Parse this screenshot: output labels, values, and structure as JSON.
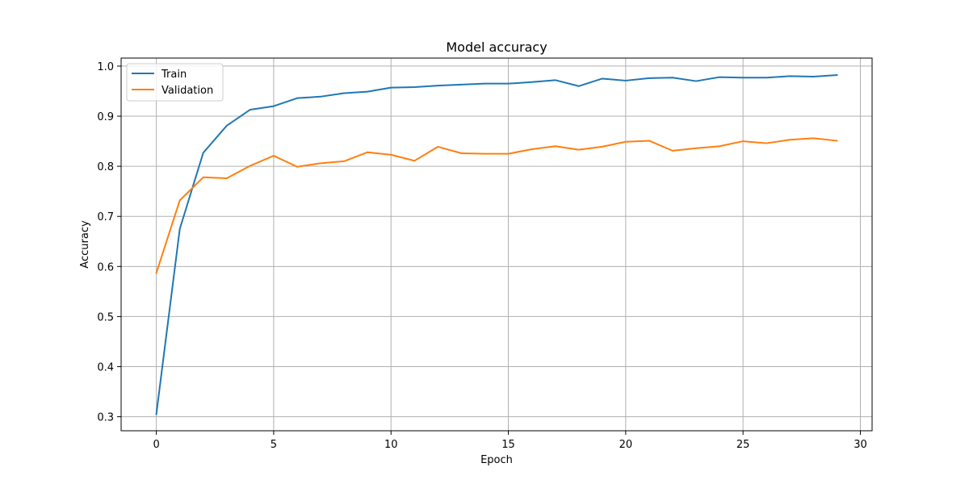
{
  "chart_data": {
    "type": "line",
    "title": "Model accuracy",
    "xlabel": "Epoch",
    "ylabel": "Accuracy",
    "xlim": [
      -1.5,
      30.5
    ],
    "ylim": [
      0.272,
      1.016
    ],
    "xticks": [
      0,
      5,
      10,
      15,
      20,
      25,
      30
    ],
    "yticks": [
      0.3,
      0.4,
      0.5,
      0.6,
      0.7,
      0.8,
      0.9,
      1.0
    ],
    "grid": true,
    "legend_position": "top-left",
    "x": [
      0,
      1,
      2,
      3,
      4,
      5,
      6,
      7,
      8,
      9,
      10,
      11,
      12,
      13,
      14,
      15,
      16,
      17,
      18,
      19,
      20,
      21,
      22,
      23,
      24,
      25,
      26,
      27,
      28,
      29
    ],
    "series": [
      {
        "name": "Train",
        "color": "#1f77b4",
        "values": [
          0.305,
          0.675,
          0.827,
          0.881,
          0.913,
          0.92,
          0.936,
          0.939,
          0.946,
          0.949,
          0.957,
          0.958,
          0.961,
          0.963,
          0.965,
          0.965,
          0.968,
          0.972,
          0.96,
          0.975,
          0.971,
          0.976,
          0.977,
          0.97,
          0.978,
          0.977,
          0.977,
          0.98,
          0.979,
          0.982
        ]
      },
      {
        "name": "Validation",
        "color": "#ff7f0e",
        "values": [
          0.587,
          0.732,
          0.778,
          0.776,
          0.801,
          0.821,
          0.799,
          0.806,
          0.81,
          0.828,
          0.823,
          0.811,
          0.839,
          0.826,
          0.825,
          0.825,
          0.834,
          0.84,
          0.833,
          0.839,
          0.849,
          0.851,
          0.831,
          0.836,
          0.84,
          0.85,
          0.846,
          0.853,
          0.856,
          0.851
        ]
      }
    ]
  }
}
